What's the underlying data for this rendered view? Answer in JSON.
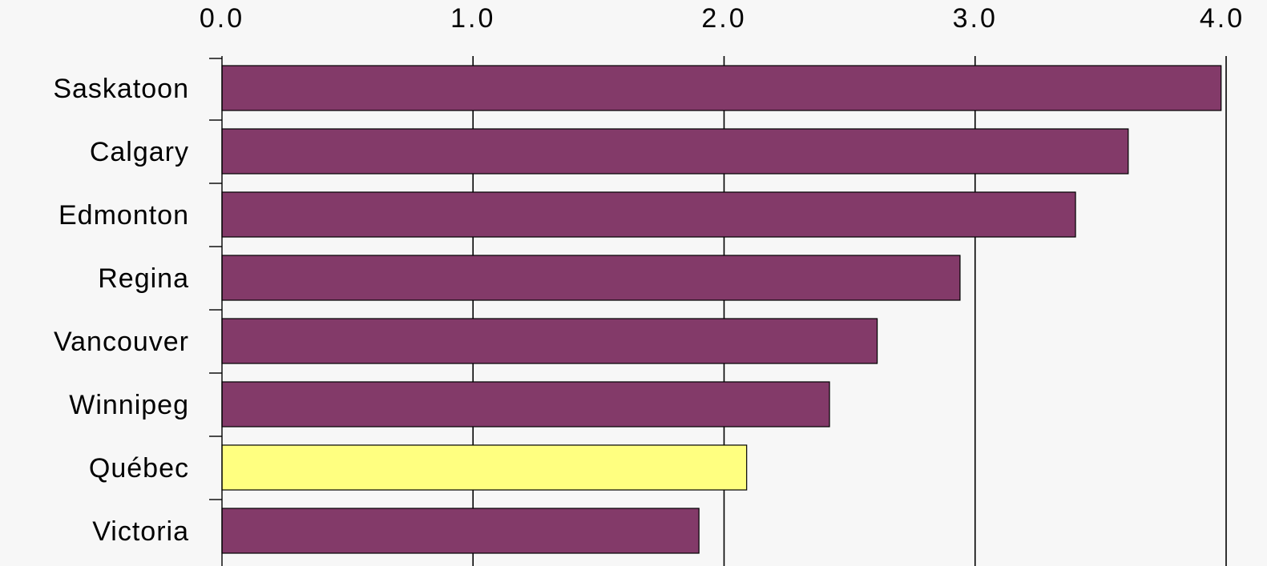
{
  "chart_data": {
    "type": "bar",
    "orientation": "horizontal",
    "title": "",
    "xlabel": "",
    "ylabel": "",
    "xlim": [
      0,
      4.0
    ],
    "x_ticks": [
      "0.0",
      "1.0",
      "2.0",
      "3.0",
      "4.0"
    ],
    "x_tick_values": [
      0,
      1,
      2,
      3,
      4
    ],
    "x_axis_position": "top",
    "grid": "vertical",
    "categories": [
      "Saskatoon",
      "Calgary",
      "Edmonton",
      "Regina",
      "Vancouver",
      "Winnipeg",
      "Québec",
      "Victoria"
    ],
    "values": [
      3.98,
      3.61,
      3.4,
      2.94,
      2.61,
      2.42,
      2.09,
      1.9
    ],
    "bar_colors": [
      "#833a69",
      "#833a69",
      "#833a69",
      "#833a69",
      "#833a69",
      "#833a69",
      "#ffff80",
      "#833a69"
    ],
    "highlight": "Québec",
    "colors": {
      "background": "#f7f7f7",
      "bar": "#833a69",
      "highlight_bar": "#ffff80",
      "lines": "#000000"
    }
  }
}
